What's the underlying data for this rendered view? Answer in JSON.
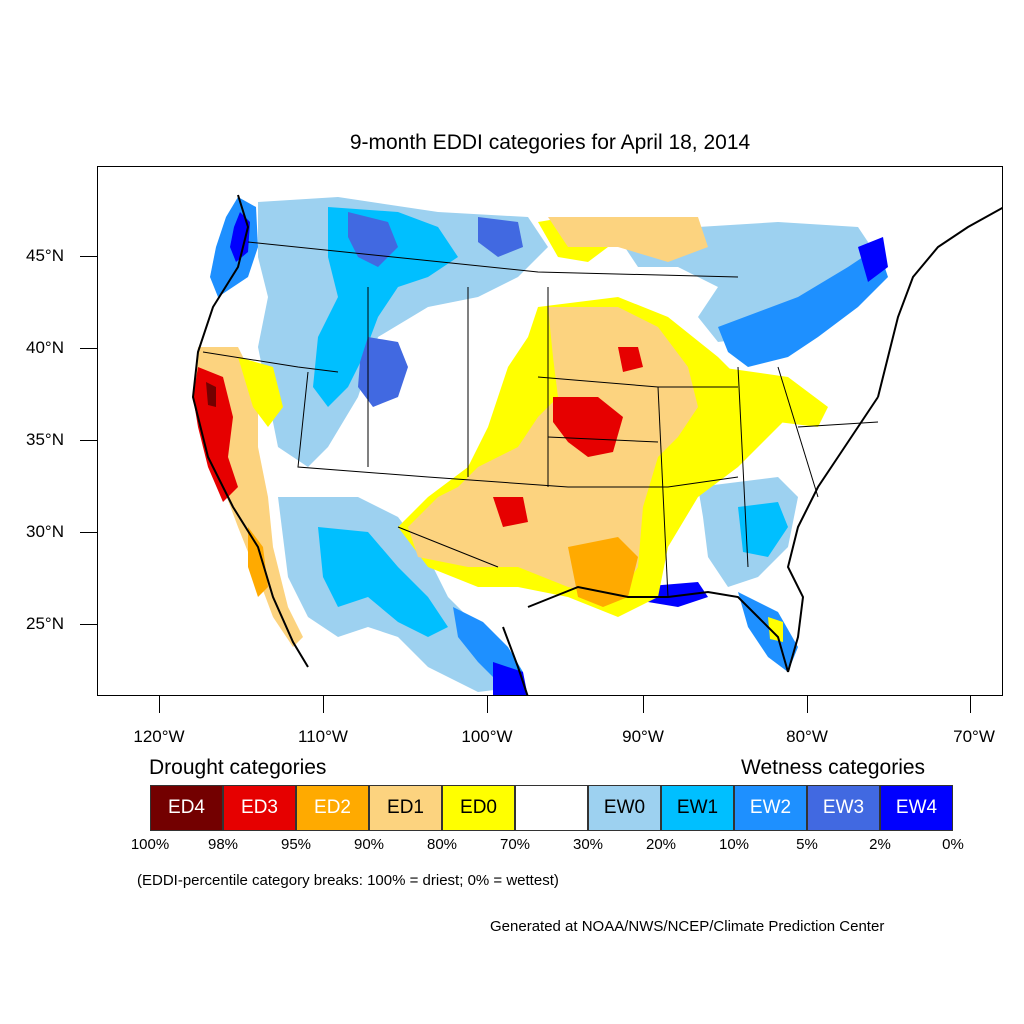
{
  "title": "9-month EDDI categories for April 18, 2014",
  "latitude_labels": [
    "45°N",
    "40°N",
    "35°N",
    "30°N",
    "25°N"
  ],
  "longitude_labels": [
    "120°W",
    "110°W",
    "100°W",
    "90°W",
    "80°W",
    "70°W"
  ],
  "legend": {
    "drought_heading": "Drought categories",
    "wetness_heading": "Wetness categories",
    "categories": [
      {
        "label": "ED4",
        "color": "#730000",
        "text_color": "#ffffff"
      },
      {
        "label": "ED3",
        "color": "#e60000",
        "text_color": "#ffffff"
      },
      {
        "label": "ED2",
        "color": "#ffaa00",
        "text_color": "#ffffff"
      },
      {
        "label": "ED1",
        "color": "#fcd37f",
        "text_color": "#000000"
      },
      {
        "label": "ED0",
        "color": "#ffff00",
        "text_color": "#000000"
      },
      {
        "label": "",
        "color": "#ffffff",
        "text_color": "#000000"
      },
      {
        "label": "EW0",
        "color": "#9dd1f0",
        "text_color": "#000000"
      },
      {
        "label": "EW1",
        "color": "#00bfff",
        "text_color": "#000000"
      },
      {
        "label": "EW2",
        "color": "#1e90ff",
        "text_color": "#ffffff"
      },
      {
        "label": "EW3",
        "color": "#4169e1",
        "text_color": "#ffffff"
      },
      {
        "label": "EW4",
        "color": "#0000ff",
        "text_color": "#ffffff"
      }
    ],
    "percentile_breaks": [
      "100%",
      "98%",
      "95%",
      "90%",
      "80%",
      "70%",
      "30%",
      "20%",
      "10%",
      "5%",
      "2%",
      "0%"
    ]
  },
  "note": "(EDDI-percentile category breaks: 100% = driest; 0% = wettest)",
  "credit": "Generated at NOAA/NWS/NCEP/Climate Prediction Center"
}
